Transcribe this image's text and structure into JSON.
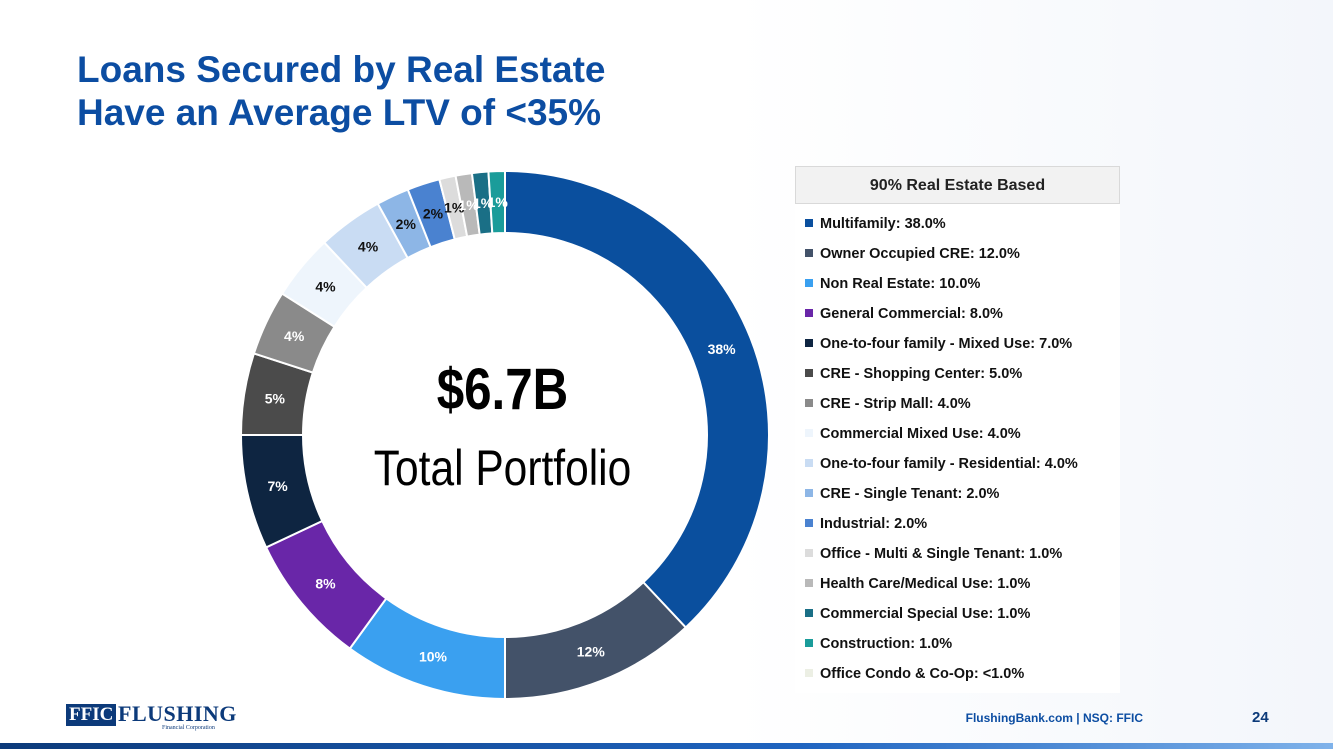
{
  "slide": {
    "title": "Loans Secured by Real Estate",
    "subtitle": "Have an Average LTV of <35%",
    "center_value": "$6.7B",
    "center_label": "Total Portfolio",
    "footer_site": "FlushingBank.com | NSQ: FFIC",
    "page_number": "24",
    "logo_ffic": "FFIC",
    "logo_name": "FLUSHING",
    "logo_tagline": "Financial Corporation"
  },
  "chart_data": {
    "type": "pie",
    "donut": true,
    "legend_title": "90% Real Estate Based",
    "legend_position": "right",
    "slices": [
      {
        "name": "Multifamily",
        "value": 38,
        "label": "38%",
        "legend": "Multifamily: 38.0%",
        "color": "#0a4f9e",
        "label_color": "#ffffff"
      },
      {
        "name": "Owner Occupied CRE",
        "value": 12,
        "label": "12%",
        "legend": "Owner Occupied CRE: 12.0%",
        "color": "#435269",
        "label_color": "#ffffff"
      },
      {
        "name": "Non Real Estate",
        "value": 10,
        "label": "10%",
        "legend": "Non Real Estate: 10.0%",
        "color": "#3aa0f0",
        "label_color": "#ffffff"
      },
      {
        "name": "General Commercial",
        "value": 8,
        "label": "8%",
        "legend": "General Commercial: 8.0%",
        "color": "#6926a8",
        "label_color": "#ffffff"
      },
      {
        "name": "One-to-four family - Mixed Use",
        "value": 7,
        "label": "7%",
        "legend": "One-to-four family - Mixed Use: 7.0%",
        "color": "#0e2541",
        "label_color": "#ffffff"
      },
      {
        "name": "CRE - Shopping Center",
        "value": 5,
        "label": "5%",
        "legend": "CRE - Shopping Center: 5.0%",
        "color": "#4b4b4b",
        "label_color": "#ffffff"
      },
      {
        "name": "CRE - Strip Mall",
        "value": 4,
        "label": "4%",
        "legend": "CRE - Strip Mall: 4.0%",
        "color": "#8a8a8a",
        "label_color": "#ffffff"
      },
      {
        "name": "Commercial Mixed Use",
        "value": 4,
        "label": "4%",
        "legend": "Commercial Mixed Use: 4.0%",
        "color": "#eef5fc",
        "label_color": "#111111"
      },
      {
        "name": "One-to-four family - Residential",
        "value": 4,
        "label": "4%",
        "legend": "One-to-four family - Residential: 4.0%",
        "color": "#c9dcf3",
        "label_color": "#111111"
      },
      {
        "name": "CRE - Single Tenant",
        "value": 2,
        "label": "2%",
        "legend": "CRE - Single Tenant: 2.0%",
        "color": "#8db6e6",
        "label_color": "#111111"
      },
      {
        "name": "Industrial",
        "value": 2,
        "label": "2%",
        "legend": "Industrial: 2.0%",
        "color": "#4a82d0",
        "label_color": "#111111"
      },
      {
        "name": "Office - Multi & Single Tenant",
        "value": 1,
        "label": "1%",
        "legend": "Office - Multi & Single Tenant: 1.0%",
        "color": "#dcdcdc",
        "label_color": "#111111"
      },
      {
        "name": "Health Care/Medical Use",
        "value": 1,
        "label": "1%",
        "legend": "Health Care/Medical Use: 1.0%",
        "color": "#b9b9b9",
        "label_color": "#ffffff"
      },
      {
        "name": "Commercial Special Use",
        "value": 1,
        "label": "1%",
        "legend": "Commercial Special Use: 1.0%",
        "color": "#1a6f86",
        "label_color": "#ffffff"
      },
      {
        "name": "Construction",
        "value": 1,
        "label": "1%",
        "legend": "Construction: 1.0%",
        "color": "#1a9c9a",
        "label_color": "#ffffff"
      },
      {
        "name": "Office Condo & Co-Op",
        "value": 0,
        "label": "",
        "legend": "Office Condo & Co-Op: <1.0%",
        "color": "#ecefe4",
        "label_color": "#111111"
      }
    ]
  }
}
